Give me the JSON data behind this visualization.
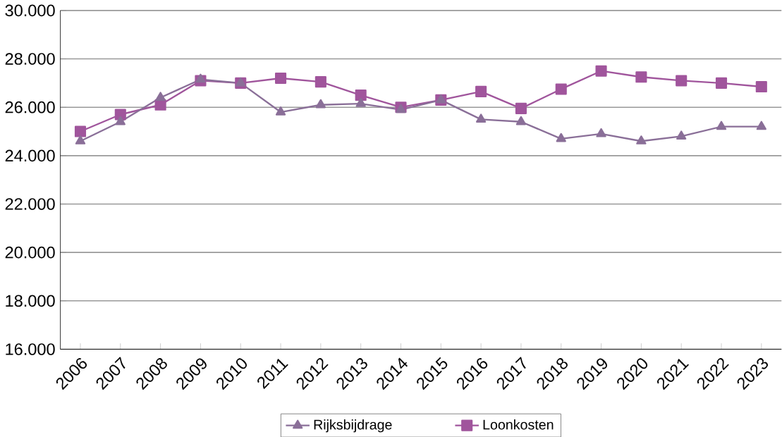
{
  "chart_data": {
    "type": "line",
    "categories": [
      "2006",
      "2007",
      "2008",
      "2009",
      "2010",
      "2011",
      "2012",
      "2013",
      "2014",
      "2015",
      "2016",
      "2017",
      "2018",
      "2019",
      "2020",
      "2021",
      "2022",
      "2023"
    ],
    "series": [
      {
        "name": "Rijksbijdrage",
        "color": "#8a6f98",
        "marker": "triangle",
        "values": [
          24600,
          25400,
          26400,
          27150,
          27000,
          25800,
          26100,
          26150,
          25900,
          26300,
          25500,
          25400,
          24700,
          24900,
          24600,
          24800,
          25200,
          25200
        ]
      },
      {
        "name": "Loonkosten",
        "color": "#a0559c",
        "marker": "square",
        "values": [
          25000,
          25700,
          26100,
          27100,
          27000,
          27200,
          27050,
          26500,
          26000,
          26300,
          26650,
          25950,
          26750,
          27500,
          27250,
          27100,
          27000,
          26850
        ]
      }
    ],
    "ylim": [
      16000,
      30000
    ],
    "yticks": [
      {
        "value": 16000,
        "label": "16.000"
      },
      {
        "value": 18000,
        "label": "18.000"
      },
      {
        "value": 20000,
        "label": "20.000"
      },
      {
        "value": 22000,
        "label": "22.000"
      },
      {
        "value": 24000,
        "label": "24.000"
      },
      {
        "value": 26000,
        "label": "26.000"
      },
      {
        "value": 28000,
        "label": "28.000"
      },
      {
        "value": 30000,
        "label": "30.000"
      }
    ],
    "grid": "y",
    "legend": "bottom",
    "line_style": "solid"
  }
}
